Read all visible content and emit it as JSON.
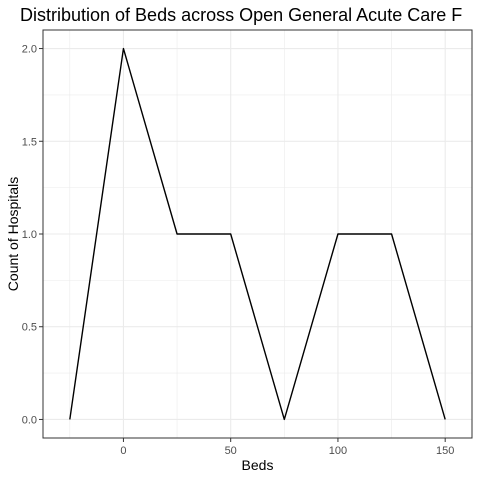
{
  "chart_data": {
    "type": "line",
    "title": "Distribution of Beds across Open General Acute Care F",
    "xlabel": "Beds",
    "ylabel": "Count of Hospitals",
    "x": [
      -25,
      0,
      25,
      50,
      75,
      100,
      125,
      150
    ],
    "y": [
      0,
      2,
      1,
      1,
      0,
      1,
      1,
      0
    ],
    "xlim": [
      -37.5,
      162.5
    ],
    "ylim": [
      -0.1,
      2.1
    ],
    "x_ticks": [
      0,
      50,
      100,
      150
    ],
    "x_tick_labels": [
      "0",
      "50",
      "100",
      "150"
    ],
    "y_ticks": [
      0,
      0.5,
      1,
      1.5,
      2
    ],
    "y_tick_labels": [
      "0.0",
      "0.5",
      "1.0",
      "1.5",
      "2.0"
    ],
    "grid": true,
    "line_color": "#000000",
    "grid_color": "#ebebeb",
    "panel_border_color": "#333333"
  }
}
